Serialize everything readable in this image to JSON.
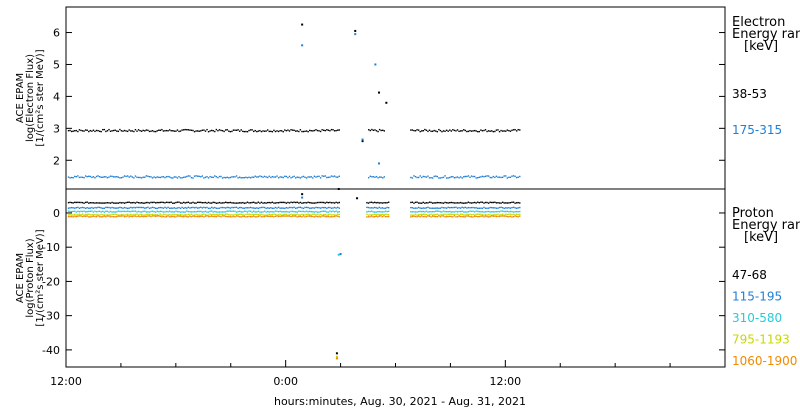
{
  "xlabel": "hours:minutes, Aug. 30, 2021 - Aug. 31, 2021",
  "x_ticks": [
    "12:00",
    "0:00",
    "12:00"
  ],
  "chart_data": [
    {
      "type": "scatter",
      "panel": "top",
      "ylabel_lines": [
        "ACE EPAM",
        "log(Electron Flux)",
        "[1/(cm²s ster MeV)]"
      ],
      "legend_title_lines": [
        "Electron",
        "Energy ran",
        "[keV]"
      ],
      "x_unit": "hours from Aug. 30 12:00",
      "xlim": [
        0,
        36
      ],
      "ylim": [
        1.1,
        6.8
      ],
      "y_ticks": [
        2,
        3,
        4,
        5,
        6
      ],
      "grid": false,
      "legend_placement": "right",
      "series": [
        {
          "name": "38-53",
          "color": "#000000",
          "level": 2.95,
          "segments": [
            [
              0.1,
              14.9
            ],
            [
              16.5,
              17.4
            ],
            [
              18.8,
              24.8
            ]
          ],
          "points": [
            [
              12.9,
              6.25
            ],
            [
              15.8,
              6.05
            ],
            [
              16.2,
              2.6
            ],
            [
              17.1,
              4.12
            ],
            [
              17.5,
              3.8
            ]
          ]
        },
        {
          "name": "175-315",
          "color": "#1f7fd6",
          "level": 1.5,
          "segments": [
            [
              0.1,
              14.9
            ],
            [
              16.5,
              17.4
            ],
            [
              18.8,
              24.8
            ]
          ],
          "points": [
            [
              12.9,
              5.6
            ],
            [
              15.8,
              5.95
            ],
            [
              16.2,
              2.65
            ],
            [
              16.9,
              5.0
            ],
            [
              17.1,
              1.9
            ]
          ]
        }
      ]
    },
    {
      "type": "scatter",
      "panel": "bottom",
      "ylabel_lines": [
        "ACE EPAM",
        "log(Proton Flux)",
        "[1/(cm²s ster MeV)]"
      ],
      "legend_title_lines": [
        "Proton",
        "Energy ran",
        "[keV]"
      ],
      "x_unit": "hours from Aug. 30 12:00",
      "xlim": [
        0,
        36
      ],
      "ylim": [
        -45,
        7
      ],
      "y_ticks": [
        0,
        -10,
        -20,
        -30,
        -40
      ],
      "grid": false,
      "legend_placement": "right",
      "series": [
        {
          "name": "47-68",
          "color": "#000000",
          "level": 3.2,
          "segments": [
            [
              0.1,
              14.9
            ],
            [
              16.4,
              17.6
            ],
            [
              18.8,
              24.8
            ]
          ],
          "points": [
            [
              12.9,
              5.5
            ],
            [
              14.9,
              7.0
            ],
            [
              15.9,
              4.3
            ],
            [
              14.8,
              -41.0
            ]
          ]
        },
        {
          "name": "115-195",
          "color": "#1f7fd6",
          "level": 1.7,
          "segments": [
            [
              0.1,
              14.9
            ],
            [
              16.4,
              17.6
            ],
            [
              18.8,
              24.8
            ]
          ],
          "points": [
            [
              12.9,
              4.5
            ],
            [
              15.0,
              -12.0
            ]
          ]
        },
        {
          "name": "310-580",
          "color": "#29c9d9",
          "level": 0.6,
          "segments": [
            [
              0.1,
              14.9
            ],
            [
              16.4,
              17.6
            ],
            [
              18.8,
              24.8
            ]
          ],
          "points": [
            [
              14.9,
              -12.2
            ]
          ]
        },
        {
          "name": "795-1193",
          "color": "#c8d800",
          "level": -0.3,
          "segments": [
            [
              0.1,
              14.9
            ],
            [
              16.4,
              17.6
            ],
            [
              18.8,
              24.8
            ]
          ],
          "points": [
            [
              14.8,
              -42.0
            ]
          ]
        },
        {
          "name": "1060-1900",
          "color": "#f08a00",
          "level": -0.8,
          "segments": [
            [
              0.1,
              14.9
            ],
            [
              16.4,
              17.6
            ],
            [
              18.8,
              24.8
            ]
          ],
          "points": [
            [
              14.8,
              -42.5
            ]
          ]
        }
      ]
    }
  ]
}
